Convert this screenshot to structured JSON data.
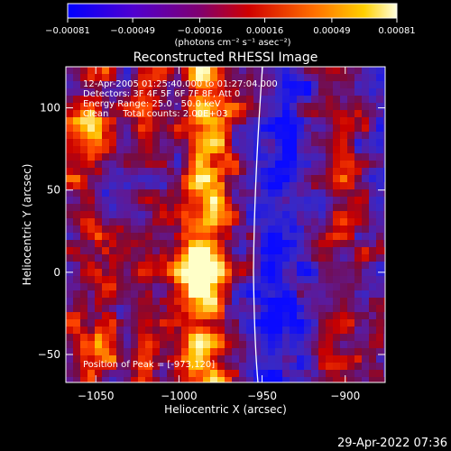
{
  "chart_data": {
    "type": "heatmap",
    "title": "Reconstructed RHESSI Image",
    "xlabel": "Heliocentric X (arcsec)",
    "ylabel": "Heliocentric Y (arcsec)",
    "xlim": [
      -1068,
      -876
    ],
    "ylim": [
      -67,
      125
    ],
    "x_ticks": [
      -1050,
      -1000,
      -950,
      -900
    ],
    "x_tick_labels": [
      "−1050",
      "−1000",
      "−950",
      "−900"
    ],
    "y_ticks": [
      -50,
      0,
      50,
      100
    ],
    "y_tick_labels": [
      "−50",
      "0",
      "50",
      "100"
    ],
    "colorbar": {
      "range": [
        -0.00081,
        0.00081
      ],
      "ticks": [
        -0.00081,
        -0.00049,
        -0.00016,
        0.00016,
        0.00049,
        0.00081
      ],
      "tick_labels": [
        "−0.00081",
        "−0.00049",
        "−0.00016",
        "0.00016",
        "0.00049",
        "0.00081"
      ],
      "unit_label": "(photons cm⁻² s⁻¹ asec⁻²)",
      "colors": [
        "#0000ff",
        "#6a00c8",
        "#a00000",
        "#ff3000",
        "#ffb000",
        "#ffffc8"
      ]
    },
    "annotations": [
      "12-Apr-2005 01:25:40.000 to 01:27:04.000",
      "Detectors: 3F 4F 5F 6F 7F 8F, Att 0",
      "Energy Range: 25.0 - 50.0 keV",
      "Clean     Total counts: 2.00E+03"
    ],
    "peak_label": "Position of Peak = [-973,120]",
    "limb_line": true,
    "grid": false
  },
  "footer": {
    "timestamp": "29-Apr-2022 07:36"
  }
}
